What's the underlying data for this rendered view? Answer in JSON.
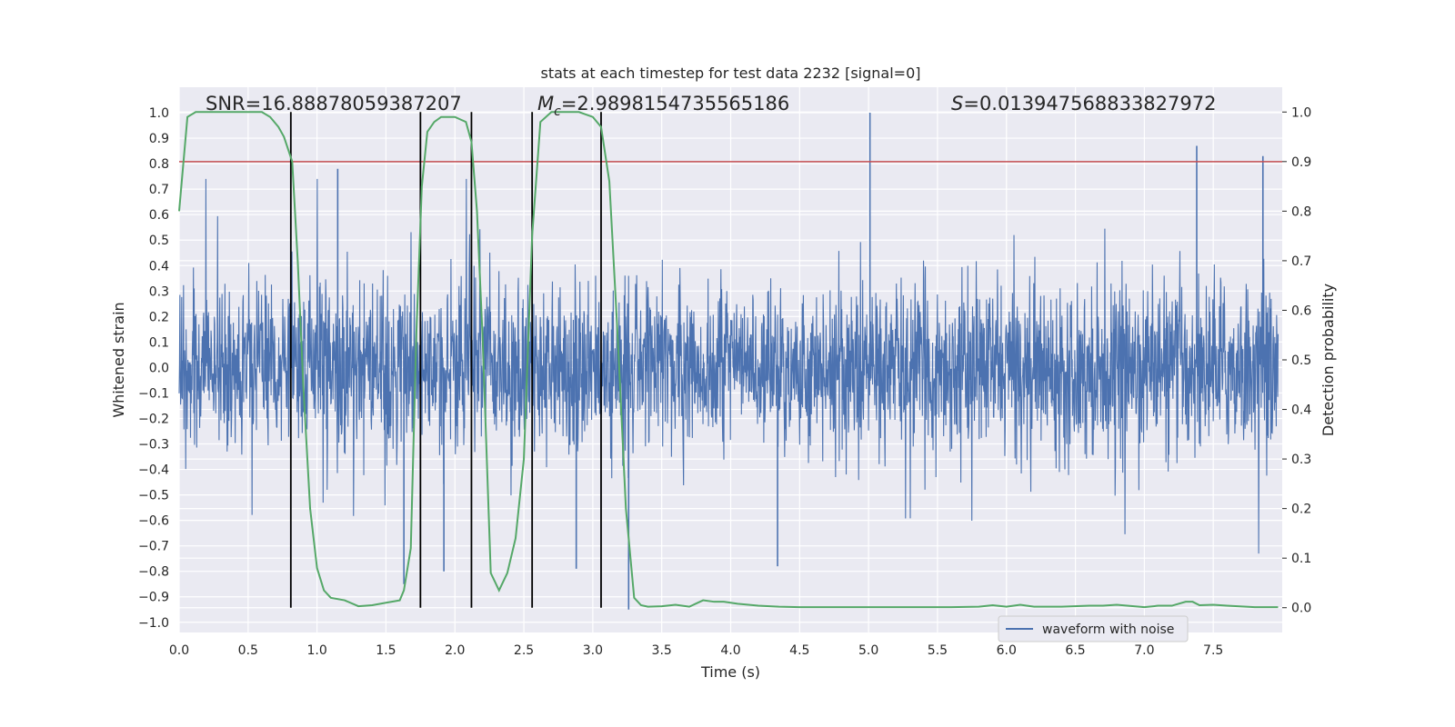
{
  "chart_data": {
    "type": "line",
    "title": "stats at each timestep for test data 2232 [signal=0]",
    "xlabel": "Time (s)",
    "ylabel": "Whitened strain",
    "y2label": "Detection probability",
    "xlim": [
      0.0,
      8.0
    ],
    "ylim": [
      -1.04,
      1.1
    ],
    "y2lim": [
      -0.05,
      1.05
    ],
    "xticks": [
      "0.0",
      "0.5",
      "1.0",
      "1.5",
      "2.0",
      "2.5",
      "3.0",
      "3.5",
      "4.0",
      "4.5",
      "5.0",
      "5.5",
      "6.0",
      "6.5",
      "7.0",
      "7.5"
    ],
    "yticks": [
      "1.0",
      "0.9",
      "0.8",
      "0.7",
      "0.6",
      "0.5",
      "0.4",
      "0.3",
      "0.2",
      "0.1",
      "0.0",
      "-0.1",
      "-0.2",
      "-0.3",
      "-0.4",
      "-0.5",
      "-0.6",
      "-0.7",
      "-0.8",
      "-0.9",
      "-1.0"
    ],
    "y2ticks": [
      "1.0",
      "0.9",
      "0.8",
      "0.7",
      "0.6",
      "0.5",
      "0.4",
      "0.3",
      "0.2",
      "0.1",
      "0.0"
    ],
    "grid": true,
    "legend_position": "lower-right",
    "annotations": {
      "snr": "SNR=16.88878059387207",
      "mc_symbol": "M",
      "mc_sub": "c",
      "mc_value": "=2.9898154735565186",
      "s_symbol": "S",
      "s_value": "=0.013947568833827972"
    },
    "series": [
      {
        "name": "waveform with noise",
        "axis": "left",
        "color": "#4c72b0",
        "note": "dense whitened strain noise, envelope roughly +/-0.45 with spikes",
        "spikes": [
          {
            "x": 5.01,
            "y": 1.0
          },
          {
            "x": 7.38,
            "y": 0.87
          },
          {
            "x": 7.86,
            "y": 0.83
          },
          {
            "x": 1.15,
            "y": 0.78
          },
          {
            "x": 1.63,
            "y": -0.85
          },
          {
            "x": 3.26,
            "y": -0.95
          },
          {
            "x": 1.92,
            "y": -0.8
          },
          {
            "x": 2.88,
            "y": -0.79
          },
          {
            "x": 4.34,
            "y": -0.78
          }
        ]
      },
      {
        "name": "detection probability",
        "axis": "right",
        "color": "#55a868",
        "x": [
          0.0,
          0.06,
          0.12,
          0.2,
          0.3,
          0.4,
          0.5,
          0.6,
          0.66,
          0.72,
          0.76,
          0.82,
          0.86,
          0.9,
          0.95,
          1.0,
          1.05,
          1.1,
          1.2,
          1.3,
          1.4,
          1.5,
          1.6,
          1.63,
          1.68,
          1.72,
          1.76,
          1.8,
          1.85,
          1.9,
          2.0,
          2.08,
          2.12,
          2.16,
          2.2,
          2.26,
          2.32,
          2.38,
          2.44,
          2.5,
          2.56,
          2.62,
          2.7,
          2.8,
          2.9,
          3.0,
          3.06,
          3.12,
          3.18,
          3.24,
          3.3,
          3.35,
          3.4,
          3.5,
          3.6,
          3.7,
          3.8,
          3.88,
          3.95,
          4.05,
          4.2,
          4.35,
          4.5,
          4.8,
          5.0,
          5.3,
          5.6,
          5.8,
          5.9,
          6.0,
          6.1,
          6.2,
          6.4,
          6.6,
          6.7,
          6.8,
          7.0,
          7.1,
          7.2,
          7.3,
          7.35,
          7.4,
          7.5,
          7.6,
          7.8,
          7.97
        ],
        "values": [
          0.8,
          0.99,
          1.0,
          1.0,
          1.0,
          1.0,
          1.0,
          1.0,
          0.99,
          0.97,
          0.95,
          0.9,
          0.7,
          0.45,
          0.2,
          0.08,
          0.035,
          0.02,
          0.015,
          0.003,
          0.005,
          0.01,
          0.015,
          0.035,
          0.12,
          0.55,
          0.85,
          0.96,
          0.98,
          0.99,
          0.99,
          0.98,
          0.94,
          0.8,
          0.55,
          0.07,
          0.035,
          0.07,
          0.14,
          0.3,
          0.75,
          0.98,
          1.0,
          1.0,
          1.0,
          0.99,
          0.97,
          0.86,
          0.55,
          0.2,
          0.02,
          0.005,
          0.002,
          0.003,
          0.006,
          0.002,
          0.015,
          0.012,
          0.012,
          0.008,
          0.004,
          0.002,
          0.001,
          0.001,
          0.001,
          0.001,
          0.001,
          0.002,
          0.005,
          0.002,
          0.006,
          0.002,
          0.002,
          0.004,
          0.004,
          0.006,
          0.001,
          0.004,
          0.004,
          0.012,
          0.012,
          0.005,
          0.006,
          0.004,
          0.001,
          0.001
        ]
      },
      {
        "name": "threshold",
        "axis": "right",
        "color": "#c44e52",
        "values": [
          0.9,
          0.9
        ]
      }
    ],
    "vlines": [
      0.81,
      1.75,
      2.12,
      2.56,
      3.06
    ],
    "vline_color": "#000000"
  }
}
